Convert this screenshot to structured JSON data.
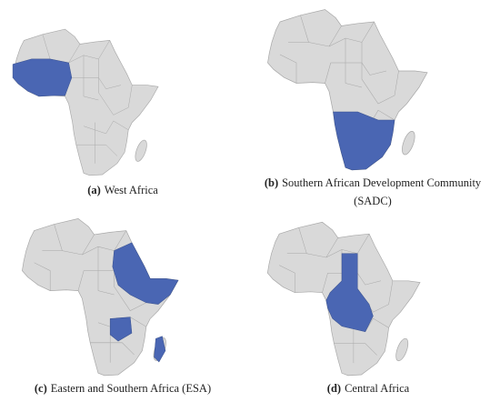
{
  "figure": {
    "panels": [
      {
        "tag": "(a)",
        "caption": "West Africa"
      },
      {
        "tag": "(b)",
        "caption": "Southern African Development Community",
        "caption_line2": "(SADC)"
      },
      {
        "tag": "(c)",
        "caption": "Eastern and Southern Africa (ESA)"
      },
      {
        "tag": "(d)",
        "caption": "Central Africa"
      }
    ]
  }
}
